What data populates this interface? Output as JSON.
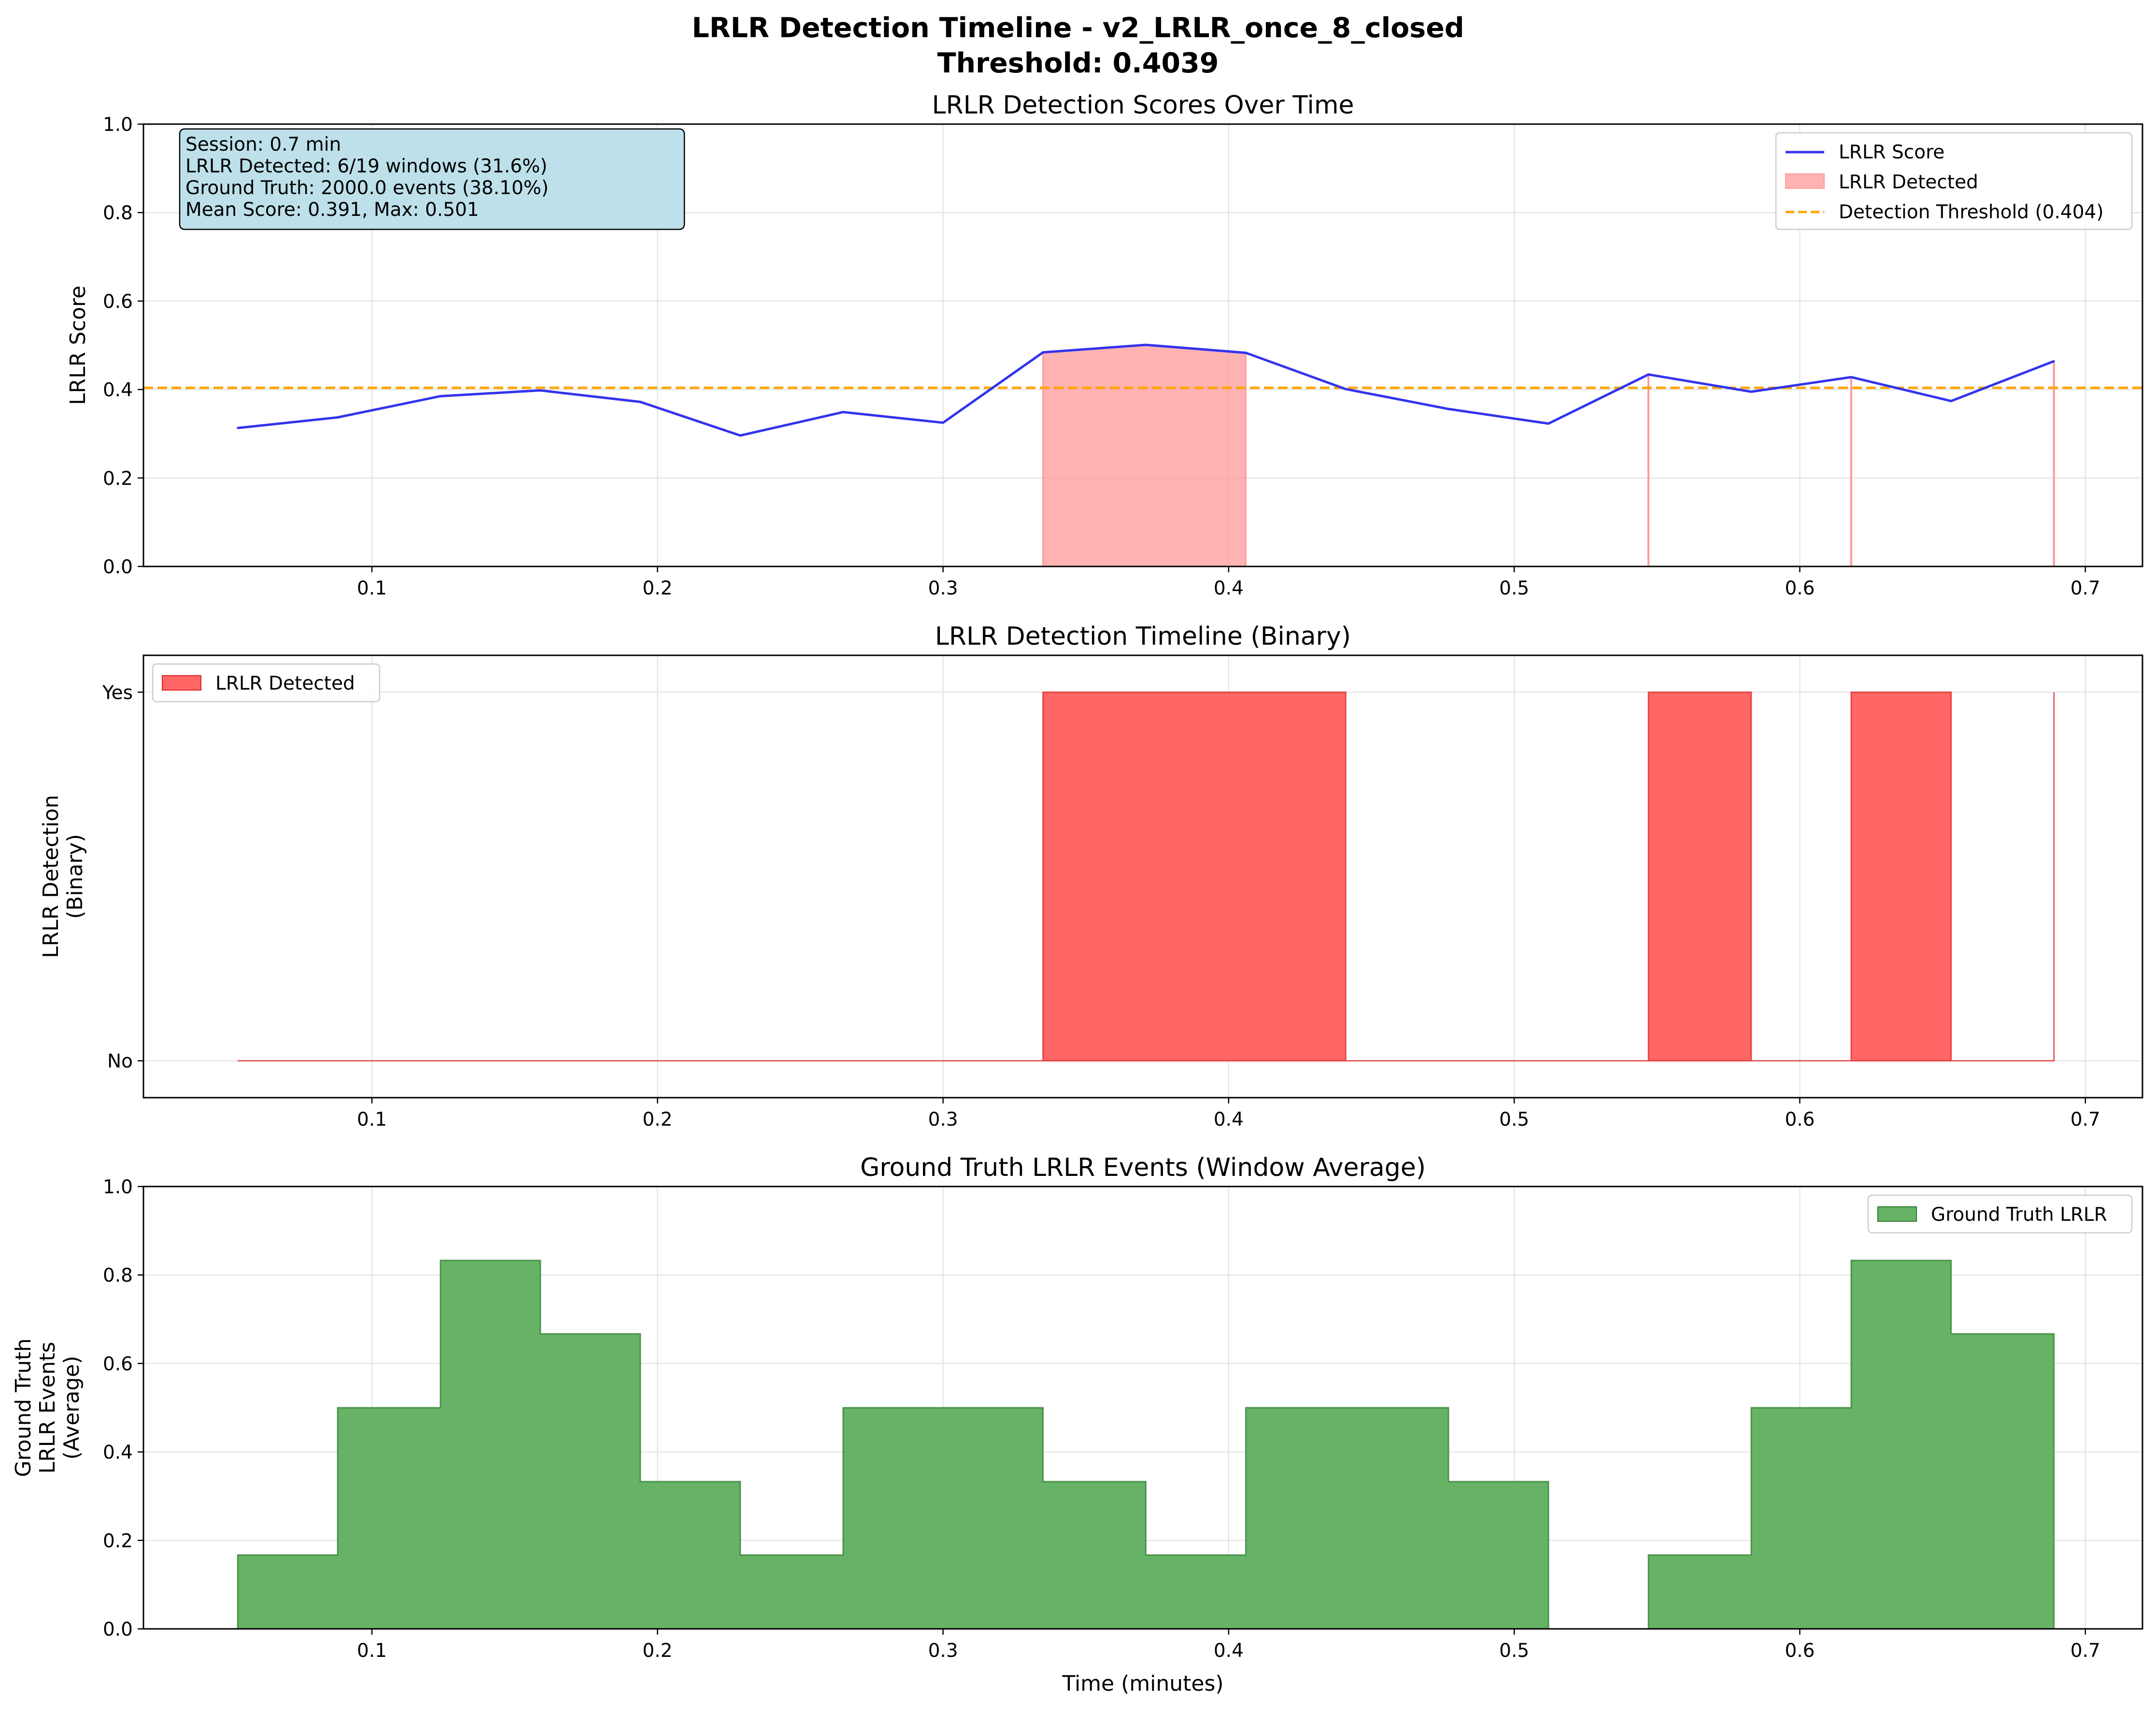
{
  "figure": {
    "suptitle_line1": "LRLR Detection Timeline - v2_LRLR_once_8_closed",
    "suptitle_line2": "Threshold: 0.4039"
  },
  "colors": {
    "score_line": "#3333ee",
    "threshold": "#ffa500",
    "detected_fill": "#ff9999",
    "binary_fill": "#ff6666",
    "binary_edge": "#dd2222",
    "gt_fill": "#66b266",
    "gt_edge": "#2a7a2a",
    "infobox_bg": "#bde0ea"
  },
  "chart_data": [
    {
      "type": "line",
      "title": "LRLR Detection Scores Over Time",
      "xlabel": "",
      "ylabel": "LRLR Score",
      "xlim": [
        0.02,
        0.72
      ],
      "ylim": [
        0,
        1.0
      ],
      "xticks": [
        0.1,
        0.2,
        0.3,
        0.4,
        0.5,
        0.6,
        0.7
      ],
      "xtick_labels": [
        "0.1",
        "0.2",
        "0.3",
        "0.4",
        "0.5",
        "0.6",
        "0.7"
      ],
      "yticks": [
        0.0,
        0.2,
        0.4,
        0.6,
        0.8,
        1.0
      ],
      "ytick_labels": [
        "0.0",
        "0.2",
        "0.4",
        "0.6",
        "0.8",
        "1.0"
      ],
      "grid": true,
      "legend_position": "top-right",
      "x": [
        0.053,
        0.088,
        0.124,
        0.159,
        0.194,
        0.229,
        0.265,
        0.3,
        0.335,
        0.371,
        0.406,
        0.441,
        0.477,
        0.512,
        0.547,
        0.583,
        0.618,
        0.653,
        0.689
      ],
      "series": [
        {
          "name": "LRLR Score",
          "values": [
            0.313,
            0.337,
            0.385,
            0.398,
            0.372,
            0.296,
            0.349,
            0.325,
            0.484,
            0.501,
            0.483,
            0.401,
            0.356,
            0.323,
            0.434,
            0.395,
            0.428,
            0.374,
            0.464
          ]
        }
      ],
      "threshold": {
        "name": "Detection Threshold (0.404)",
        "value": 0.4039
      },
      "detected_fill": {
        "name": "LRLR Detected"
      },
      "info_box": [
        "Session: 0.7 min",
        "LRLR Detected: 6/19 windows (31.6%)",
        "Ground Truth: 2000.0 events (38.10%)",
        "Mean Score: 0.391, Max: 0.501"
      ]
    },
    {
      "type": "area",
      "title": "LRLR Detection Timeline (Binary)",
      "xlabel": "",
      "ylabel_lines": [
        "LRLR Detection",
        "(Binary)"
      ],
      "xlim": [
        0.02,
        0.72
      ],
      "ylim": [
        -0.1,
        1.1
      ],
      "xticks": [
        0.1,
        0.2,
        0.3,
        0.4,
        0.5,
        0.6,
        0.7
      ],
      "xtick_labels": [
        "0.1",
        "0.2",
        "0.3",
        "0.4",
        "0.5",
        "0.6",
        "0.7"
      ],
      "yticks": [
        0,
        1
      ],
      "ytick_labels": [
        "No",
        "Yes"
      ],
      "grid": true,
      "legend_position": "top-left",
      "step": "post",
      "x": [
        0.053,
        0.088,
        0.124,
        0.159,
        0.194,
        0.229,
        0.265,
        0.3,
        0.335,
        0.371,
        0.406,
        0.441,
        0.477,
        0.512,
        0.547,
        0.583,
        0.618,
        0.653,
        0.689
      ],
      "series": [
        {
          "name": "LRLR Detected",
          "values": [
            0,
            0,
            0,
            0,
            0,
            0,
            0,
            0,
            1,
            1,
            1,
            0,
            0,
            0,
            1,
            0,
            1,
            0,
            1
          ]
        }
      ]
    },
    {
      "type": "area",
      "title": "Ground Truth LRLR Events (Window Average)",
      "xlabel": "Time (minutes)",
      "ylabel_lines": [
        "Ground Truth",
        "LRLR Events",
        "(Average)"
      ],
      "xlim": [
        0.02,
        0.72
      ],
      "ylim": [
        0,
        1.0
      ],
      "xticks": [
        0.1,
        0.2,
        0.3,
        0.4,
        0.5,
        0.6,
        0.7
      ],
      "xtick_labels": [
        "0.1",
        "0.2",
        "0.3",
        "0.4",
        "0.5",
        "0.6",
        "0.7"
      ],
      "yticks": [
        0.0,
        0.2,
        0.4,
        0.6,
        0.8,
        1.0
      ],
      "ytick_labels": [
        "0.0",
        "0.2",
        "0.4",
        "0.6",
        "0.8",
        "1.0"
      ],
      "grid": true,
      "legend_position": "top-right",
      "step": "post",
      "x": [
        0.053,
        0.088,
        0.124,
        0.159,
        0.194,
        0.229,
        0.265,
        0.3,
        0.335,
        0.371,
        0.406,
        0.441,
        0.477,
        0.512,
        0.547,
        0.583,
        0.618,
        0.653,
        0.689
      ],
      "series": [
        {
          "name": "Ground Truth LRLR",
          "values": [
            0.167,
            0.5,
            0.833,
            0.667,
            0.333,
            0.167,
            0.5,
            0.5,
            0.333,
            0.167,
            0.5,
            0.5,
            0.333,
            0.0,
            0.167,
            0.5,
            0.833,
            0.667,
            0.667
          ]
        }
      ]
    }
  ]
}
